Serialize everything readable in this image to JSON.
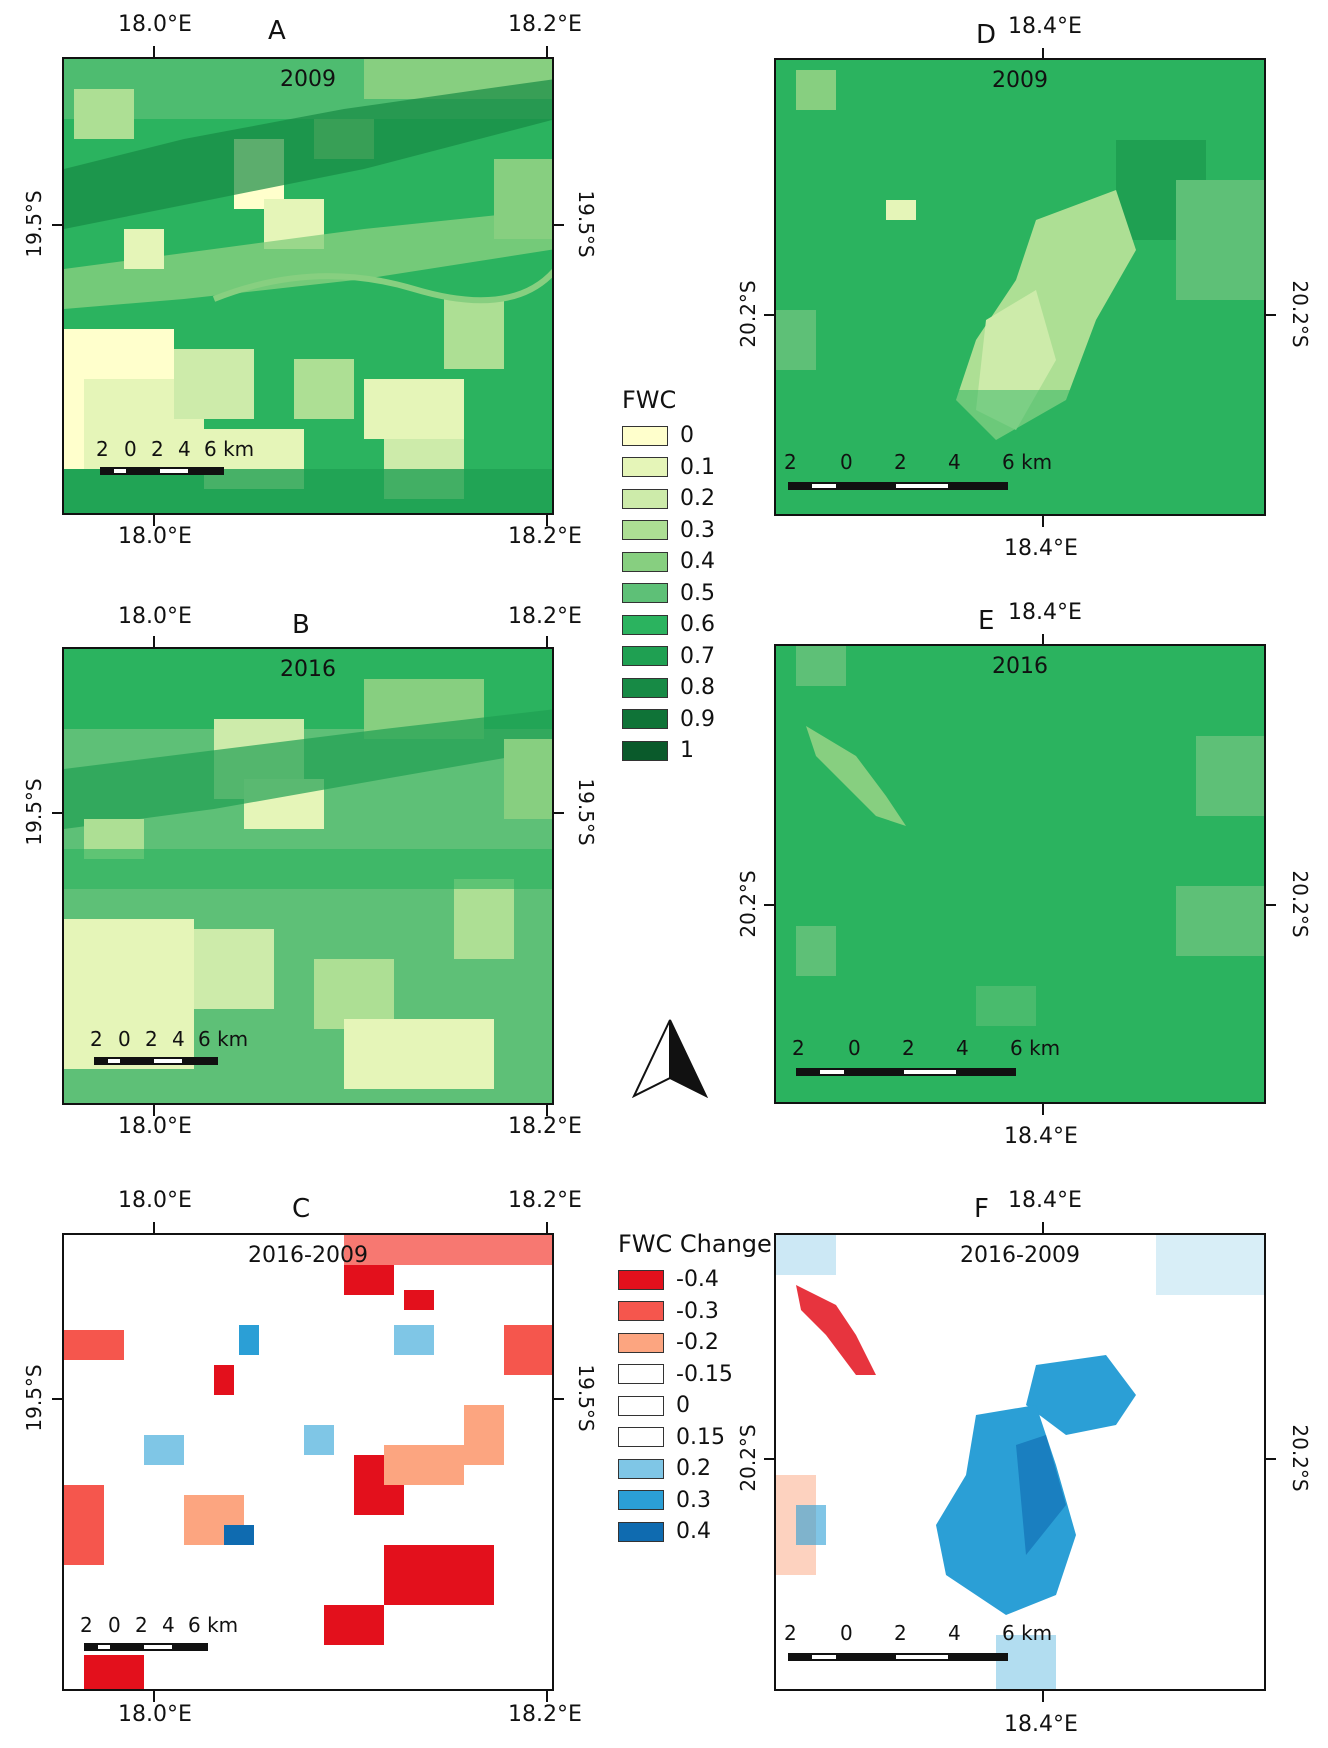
{
  "panels": {
    "A": {
      "letter": "A",
      "year": "2009",
      "lon_left": "18.0°E",
      "lon_right": "18.2°E",
      "lat": "19.5°S"
    },
    "B": {
      "letter": "B",
      "year": "2016",
      "lon_left": "18.0°E",
      "lon_right": "18.2°E",
      "lat": "19.5°S"
    },
    "C": {
      "letter": "C",
      "year": "2016-2009",
      "lon_left": "18.0°E",
      "lon_right": "18.2°E",
      "lat": "19.5°S"
    },
    "D": {
      "letter": "D",
      "year": "2009",
      "lon": "18.4°E",
      "lat": "20.2°S"
    },
    "E": {
      "letter": "E",
      "year": "2016",
      "lon": "18.4°E",
      "lat": "20.2°S"
    },
    "F": {
      "letter": "F",
      "year": "2016-2009",
      "lon": "18.4°E",
      "lat": "20.2°S"
    }
  },
  "scalebar": {
    "n2": "2",
    "n0": "0",
    "p2": "2",
    "p4": "4",
    "p6": "6 km"
  },
  "legend_fwc": {
    "title": "FWC",
    "items": [
      {
        "label": "0",
        "color": "#ffffcc"
      },
      {
        "label": "0.1",
        "color": "#e5f5b8"
      },
      {
        "label": "0.2",
        "color": "#cdebaa"
      },
      {
        "label": "0.3",
        "color": "#addf94"
      },
      {
        "label": "0.4",
        "color": "#87cf80"
      },
      {
        "label": "0.5",
        "color": "#5ec077"
      },
      {
        "label": "0.6",
        "color": "#2bb35f"
      },
      {
        "label": "0.7",
        "color": "#1fa052"
      },
      {
        "label": "0.8",
        "color": "#178a45"
      },
      {
        "label": "0.9",
        "color": "#0f7337"
      },
      {
        "label": "1",
        "color": "#0a5a2b"
      }
    ]
  },
  "legend_change": {
    "title": "FWC Change",
    "items": [
      {
        "label": "-0.4",
        "color": "#e3101c"
      },
      {
        "label": "-0.3",
        "color": "#f5564d"
      },
      {
        "label": "-0.2",
        "color": "#fca580"
      },
      {
        "label": "-0.15",
        "color": "#ffffff"
      },
      {
        "label": "0",
        "color": "#ffffff"
      },
      {
        "label": "0.15",
        "color": "#ffffff"
      },
      {
        "label": "0.2",
        "color": "#7fc6e6"
      },
      {
        "label": "0.3",
        "color": "#2b9fd6"
      },
      {
        "label": "0.4",
        "color": "#0f6bb0"
      }
    ]
  },
  "north_arrow_icon": "north-arrow-icon"
}
